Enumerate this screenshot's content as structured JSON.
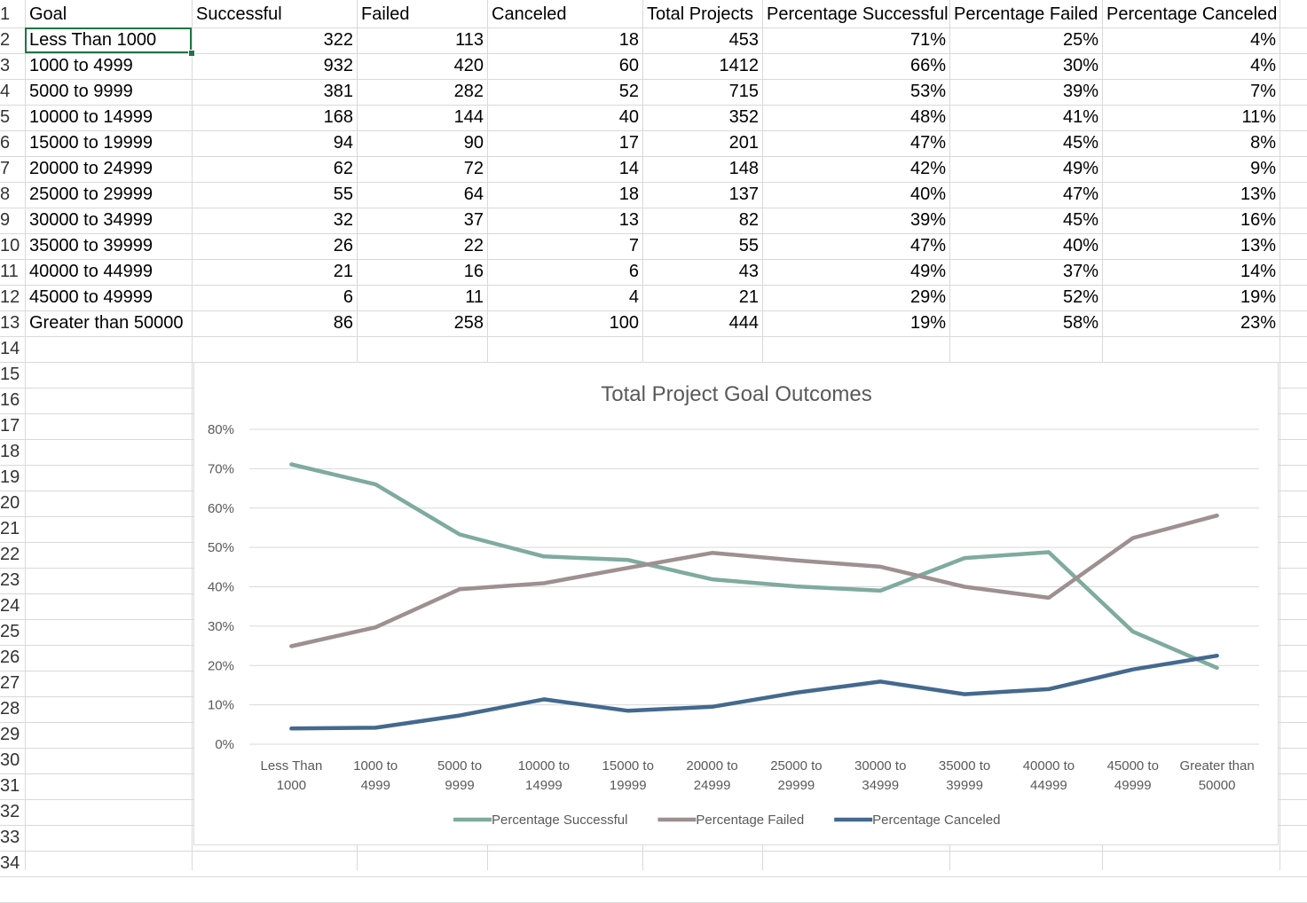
{
  "sheet": {
    "headers": [
      "Goal",
      "Successful",
      "Failed",
      "Canceled",
      "Total Projects",
      "Percentage Successful",
      "Percentage Failed",
      "Percentage Canceled"
    ],
    "row_numbers": [
      "1",
      "2",
      "3",
      "4",
      "5",
      "6",
      "7",
      "8",
      "9",
      "10",
      "11",
      "12",
      "13",
      "14",
      "15",
      "16",
      "17",
      "18",
      "19",
      "20",
      "21",
      "22",
      "23",
      "24",
      "25",
      "26",
      "27",
      "28",
      "29",
      "30",
      "31",
      "32",
      "33",
      "34"
    ],
    "rows": [
      [
        "Less Than 1000",
        "322",
        "113",
        "18",
        "453",
        "71%",
        "25%",
        "4%"
      ],
      [
        "1000 to 4999",
        "932",
        "420",
        "60",
        "1412",
        "66%",
        "30%",
        "4%"
      ],
      [
        "5000 to 9999",
        "381",
        "282",
        "52",
        "715",
        "53%",
        "39%",
        "7%"
      ],
      [
        "10000 to 14999",
        "168",
        "144",
        "40",
        "352",
        "48%",
        "41%",
        "11%"
      ],
      [
        "15000 to 19999",
        "94",
        "90",
        "17",
        "201",
        "47%",
        "45%",
        "8%"
      ],
      [
        "20000 to 24999",
        "62",
        "72",
        "14",
        "148",
        "42%",
        "49%",
        "9%"
      ],
      [
        "25000 to 29999",
        "55",
        "64",
        "18",
        "137",
        "40%",
        "47%",
        "13%"
      ],
      [
        "30000 to 34999",
        "32",
        "37",
        "13",
        "82",
        "39%",
        "45%",
        "16%"
      ],
      [
        "35000 to 39999",
        "26",
        "22",
        "7",
        "55",
        "47%",
        "40%",
        "13%"
      ],
      [
        "40000 to 44999",
        "21",
        "16",
        "6",
        "43",
        "49%",
        "37%",
        "14%"
      ],
      [
        "45000 to 49999",
        "6",
        "11",
        "4",
        "21",
        "29%",
        "52%",
        "19%"
      ],
      [
        "Greater than 50000",
        "86",
        "258",
        "100",
        "444",
        "19%",
        "58%",
        "23%"
      ]
    ],
    "selected_cell": "A2"
  },
  "chart_data": {
    "type": "line",
    "title": "Total Project Goal Outcomes",
    "xlabel": "",
    "ylabel": "",
    "categories": [
      [
        "Less Than",
        "1000"
      ],
      [
        "1000 to",
        "4999"
      ],
      [
        "5000 to",
        "9999"
      ],
      [
        "10000 to",
        "14999"
      ],
      [
        "15000 to",
        "19999"
      ],
      [
        "20000 to",
        "24999"
      ],
      [
        "25000 to",
        "29999"
      ],
      [
        "30000 to",
        "34999"
      ],
      [
        "35000 to",
        "39999"
      ],
      [
        "40000 to",
        "44999"
      ],
      [
        "45000 to",
        "49999"
      ],
      [
        "Greater than",
        "50000"
      ]
    ],
    "ylim": [
      0,
      80
    ],
    "yticks": [
      "0%",
      "10%",
      "20%",
      "30%",
      "40%",
      "50%",
      "60%",
      "70%",
      "80%"
    ],
    "grid": true,
    "legend_position": "bottom",
    "series": [
      {
        "name": "Percentage Successful",
        "color": "#7fab9e",
        "values": [
          71.1,
          66.0,
          53.3,
          47.7,
          46.8,
          41.9,
          40.1,
          39.0,
          47.3,
          48.8,
          28.6,
          19.4
        ]
      },
      {
        "name": "Percentage Failed",
        "color": "#9e9090",
        "values": [
          24.9,
          29.7,
          39.4,
          40.9,
          44.8,
          48.6,
          46.7,
          45.1,
          40.0,
          37.2,
          52.4,
          58.1
        ]
      },
      {
        "name": "Percentage Canceled",
        "color": "#44698e",
        "values": [
          4.0,
          4.2,
          7.3,
          11.4,
          8.5,
          9.5,
          13.1,
          15.9,
          12.7,
          14.0,
          19.0,
          22.5
        ]
      }
    ]
  }
}
